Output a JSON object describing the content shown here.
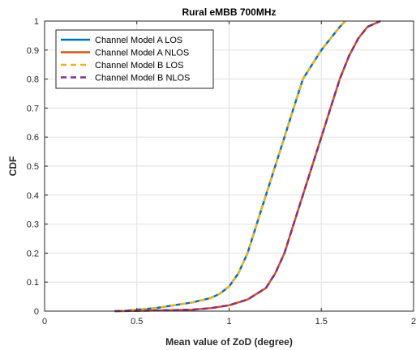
{
  "chart_data": {
    "type": "line",
    "title": "Rural eMBB 700MHz",
    "xlabel": "Mean value of ZoD (degree)",
    "ylabel": "CDF",
    "xlim": [
      0,
      2
    ],
    "ylim": [
      0,
      1
    ],
    "xticks": [
      0,
      0.5,
      1,
      1.5,
      2
    ],
    "xtick_labels": [
      "0",
      "0.5",
      "1",
      "1.5",
      "2"
    ],
    "yticks": [
      0,
      0.1,
      0.2,
      0.3,
      0.4,
      0.5,
      0.6,
      0.7,
      0.8,
      0.9,
      1
    ],
    "ytick_labels": [
      "0",
      "0.1",
      "0.2",
      "0.3",
      "0.4",
      "0.5",
      "0.6",
      "0.7",
      "0.8",
      "0.9",
      "1"
    ],
    "grid": true,
    "legend_position": "top-left",
    "series": [
      {
        "name": "Channel Model A LOS",
        "color": "#0072BD",
        "dash": "solid",
        "x": [
          0.42,
          0.5,
          0.6,
          0.7,
          0.8,
          0.9,
          0.95,
          1.0,
          1.05,
          1.1,
          1.15,
          1.2,
          1.25,
          1.3,
          1.35,
          1.4,
          1.45,
          1.5,
          1.55,
          1.6,
          1.63
        ],
        "y": [
          0,
          0.005,
          0.01,
          0.02,
          0.03,
          0.045,
          0.06,
          0.085,
          0.13,
          0.2,
          0.3,
          0.4,
          0.5,
          0.6,
          0.7,
          0.8,
          0.85,
          0.9,
          0.94,
          0.98,
          1.0
        ]
      },
      {
        "name": "Channel Model A NLOS",
        "color": "#D95319",
        "dash": "solid",
        "x": [
          0.38,
          0.6,
          0.8,
          0.9,
          1.0,
          1.1,
          1.2,
          1.25,
          1.3,
          1.35,
          1.4,
          1.45,
          1.5,
          1.55,
          1.6,
          1.65,
          1.7,
          1.75,
          1.82
        ],
        "y": [
          0,
          0.002,
          0.005,
          0.01,
          0.02,
          0.04,
          0.08,
          0.13,
          0.2,
          0.3,
          0.4,
          0.5,
          0.6,
          0.7,
          0.8,
          0.88,
          0.94,
          0.98,
          1.0
        ]
      },
      {
        "name": "Channel Model B LOS",
        "color": "#EDB120",
        "dash": "dashed",
        "x": [
          0.42,
          0.5,
          0.6,
          0.7,
          0.8,
          0.9,
          0.95,
          1.0,
          1.05,
          1.1,
          1.15,
          1.2,
          1.25,
          1.3,
          1.35,
          1.4,
          1.45,
          1.5,
          1.55,
          1.6,
          1.63
        ],
        "y": [
          0,
          0.005,
          0.01,
          0.02,
          0.03,
          0.045,
          0.06,
          0.085,
          0.13,
          0.2,
          0.3,
          0.4,
          0.5,
          0.6,
          0.7,
          0.8,
          0.85,
          0.9,
          0.94,
          0.98,
          1.0
        ]
      },
      {
        "name": "Channel Model B NLOS",
        "color": "#7E2F8E",
        "dash": "dashed",
        "x": [
          0.38,
          0.6,
          0.8,
          0.9,
          1.0,
          1.1,
          1.2,
          1.25,
          1.3,
          1.35,
          1.4,
          1.45,
          1.5,
          1.55,
          1.6,
          1.65,
          1.7,
          1.75,
          1.82
        ],
        "y": [
          0,
          0.002,
          0.005,
          0.01,
          0.02,
          0.04,
          0.08,
          0.13,
          0.2,
          0.3,
          0.4,
          0.5,
          0.6,
          0.7,
          0.8,
          0.88,
          0.94,
          0.98,
          1.0
        ]
      }
    ]
  }
}
